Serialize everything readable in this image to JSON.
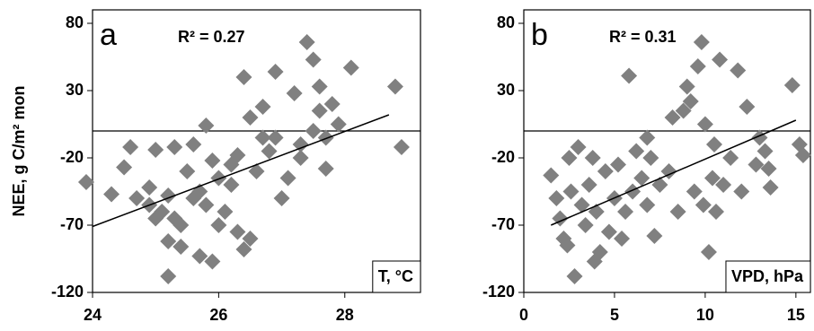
{
  "chart_data": [
    {
      "type": "scatter",
      "panel_label": "a",
      "annotation": "R² = 0.27",
      "xlabel": "T, °C",
      "ylabel": "NEE, g C/m² mon",
      "color": "#808080",
      "xlim": [
        24,
        29.2
      ],
      "ylim": [
        -120,
        90
      ],
      "xticks": [
        24,
        26,
        28
      ],
      "yticks": [
        80,
        30,
        -20,
        -70,
        -120
      ],
      "hline": 0,
      "trendline": {
        "x": [
          24,
          28.7
        ],
        "y": [
          -71,
          12
        ]
      },
      "x": [
        23.9,
        24.3,
        24.5,
        24.6,
        24.7,
        24.9,
        25.0,
        24.9,
        25.1,
        25.2,
        25.3,
        25.4,
        25.2,
        25.4,
        25.2,
        25.3,
        25.5,
        25.6,
        25.7,
        25.8,
        25.9,
        26.0,
        25.7,
        25.9,
        25.8,
        26.1,
        26.2,
        26.3,
        26.4,
        26.5,
        26.2,
        26.4,
        26.5,
        26.6,
        26.7,
        26.7,
        26.8,
        26.9,
        27.0,
        27.1,
        27.2,
        27.3,
        27.3,
        27.4,
        27.5,
        27.6,
        27.6,
        27.7,
        27.8,
        27.9,
        27.7,
        28.1,
        28.8,
        28.9,
        26.9,
        26.0,
        25.6,
        25.0,
        26.3,
        27.5
      ],
      "values": [
        -38,
        -47,
        -27,
        -12,
        -50,
        -42,
        -14,
        -55,
        -60,
        -48,
        -65,
        -70,
        -82,
        -86,
        -108,
        -12,
        -30,
        -10,
        -45,
        -55,
        -22,
        -35,
        -93,
        -97,
        4,
        -60,
        -40,
        -75,
        -88,
        -80,
        -25,
        40,
        10,
        -30,
        18,
        -5,
        -15,
        44,
        -50,
        -35,
        28,
        -20,
        -10,
        66,
        53,
        33,
        15,
        -5,
        20,
        5,
        -28,
        47,
        33,
        -12,
        -5,
        -70,
        -50,
        -65,
        -18,
        0
      ]
    },
    {
      "type": "scatter",
      "panel_label": "b",
      "annotation": "R² = 0.31",
      "xlabel": "VPD, hPa",
      "color": "#808080",
      "xlim": [
        0,
        15.8
      ],
      "ylim": [
        -120,
        90
      ],
      "xticks": [
        0,
        5,
        10,
        15
      ],
      "yticks": [
        80,
        30,
        -20,
        -70,
        -120
      ],
      "hline": 0,
      "trendline": {
        "x": [
          1.5,
          15
        ],
        "y": [
          -70,
          8
        ]
      },
      "x": [
        1.5,
        1.8,
        2.0,
        2.2,
        2.4,
        2.5,
        2.6,
        2.8,
        3.0,
        3.2,
        3.4,
        3.6,
        3.8,
        3.9,
        4.0,
        4.2,
        4.5,
        4.7,
        5.0,
        5.2,
        5.4,
        5.6,
        5.8,
        6.0,
        6.2,
        6.5,
        6.8,
        7.0,
        7.2,
        7.5,
        8.0,
        8.2,
        8.5,
        8.8,
        9.0,
        9.2,
        9.4,
        9.6,
        9.8,
        10.0,
        10.2,
        10.4,
        10.6,
        10.8,
        11.0,
        11.4,
        11.8,
        12.0,
        12.3,
        12.8,
        13.0,
        13.3,
        13.5,
        13.6,
        14.8,
        15.2,
        15.4,
        9.9,
        6.8,
        10.5
      ],
      "values": [
        -33,
        -50,
        -65,
        -80,
        -85,
        -20,
        -45,
        -108,
        -12,
        -55,
        -70,
        -40,
        -20,
        -97,
        -60,
        -90,
        -30,
        -75,
        -50,
        -25,
        -80,
        -60,
        41,
        -45,
        -15,
        -35,
        -55,
        -20,
        -78,
        -40,
        -30,
        10,
        -60,
        15,
        33,
        22,
        -45,
        48,
        66,
        5,
        -90,
        -35,
        -60,
        53,
        -40,
        -20,
        45,
        -45,
        18,
        -25,
        -5,
        -15,
        -28,
        -42,
        34,
        -10,
        -18,
        -55,
        -5,
        -10
      ]
    }
  ]
}
